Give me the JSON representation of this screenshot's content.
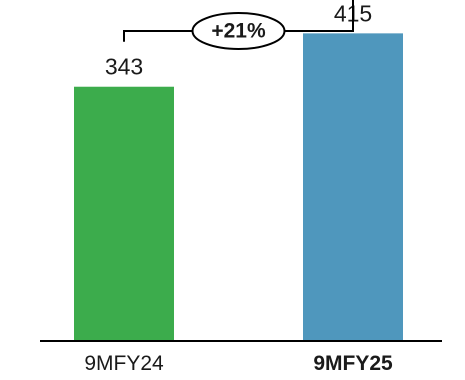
{
  "chart_data": {
    "type": "bar",
    "categories": [
      "9MFY24",
      "9MFY25"
    ],
    "values": [
      343,
      415
    ],
    "value_labels": [
      "343",
      "415"
    ],
    "colors": [
      "#3cac4c",
      "#4f97bd"
    ],
    "highlighted_category": "9MFY25",
    "growth_annotation": "+21%",
    "ylim": [
      0,
      460
    ],
    "grid": false,
    "legend": "none"
  }
}
